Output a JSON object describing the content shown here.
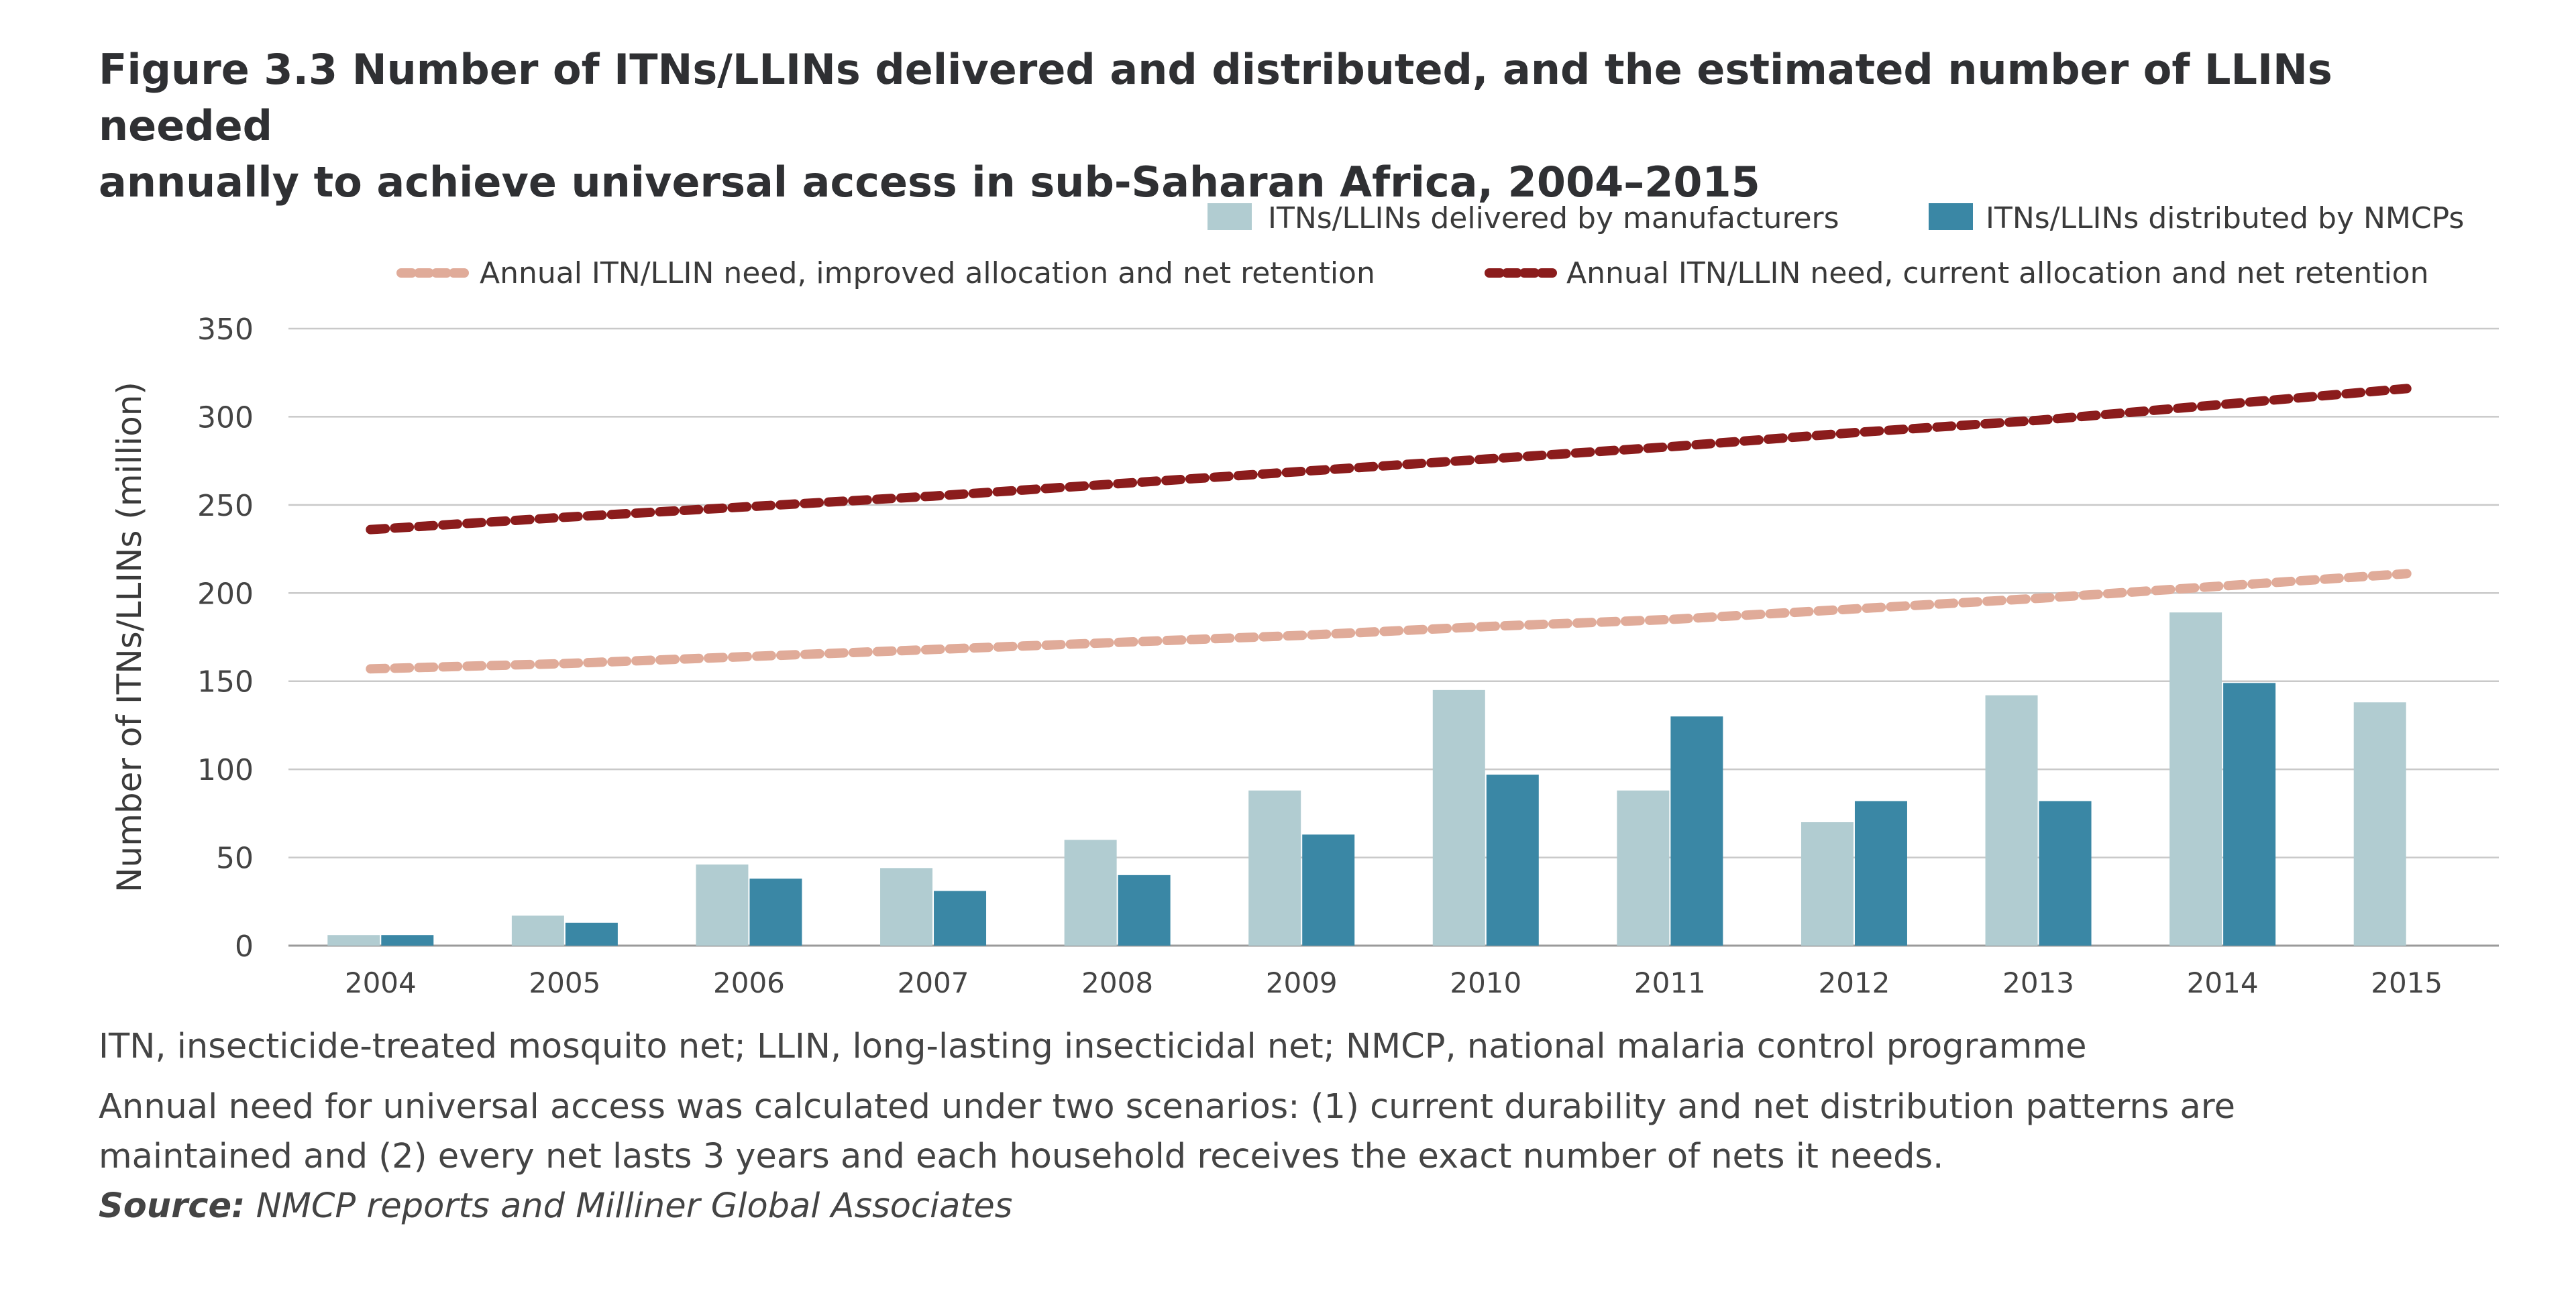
{
  "figure": {
    "title_line1": "Figure 3.3 Number of ITNs/LLINs delivered and distributed, and the estimated number of LLINs needed",
    "title_line2": "annually to achieve universal access in sub-Saharan Africa, 2004–2015"
  },
  "notes": {
    "abbreviations": "ITN, insecticide-treated mosquito net; LLIN, long-lasting insecticidal net; NMCP, national malaria control programme",
    "method_line1": "Annual need for universal access was calculated under two scenarios: (1) current durability and net distribution patterns are",
    "method_line2": "maintained and (2) every net lasts 3 years and each household receives the exact number of nets it needs.",
    "source_label": "Source:",
    "source_text": "NMCP reports and Milliner Global Associates"
  },
  "chart_data": {
    "type": "bar",
    "ylabel": "Number of ITNs/LLINs (million)",
    "ylim": [
      0,
      350
    ],
    "yticks": [
      0,
      50,
      100,
      150,
      200,
      250,
      300,
      350
    ],
    "grid": true,
    "legend_position": "top-right",
    "categories": [
      "2004",
      "2005",
      "2006",
      "2007",
      "2008",
      "2009",
      "2010",
      "2011",
      "2012",
      "2013",
      "2014",
      "2015"
    ],
    "series": [
      {
        "name": "ITNs/LLINs delivered by manufacturers",
        "kind": "bar",
        "color": "#b1ccd1",
        "values": [
          6,
          17,
          46,
          44,
          60,
          88,
          145,
          88,
          70,
          142,
          189,
          138
        ]
      },
      {
        "name": "ITNs/LLINs distributed by NMCPs",
        "kind": "bar",
        "color": "#3a87a5",
        "values": [
          6,
          13,
          38,
          31,
          40,
          63,
          97,
          130,
          82,
          82,
          149,
          null
        ]
      },
      {
        "name": "Annual ITN/LLIN need, improved allocation and net retention",
        "kind": "line",
        "color": "#e0ab99",
        "values": [
          157,
          160,
          164,
          168,
          172,
          176,
          181,
          185,
          191,
          197,
          204,
          211
        ]
      },
      {
        "name": "Annual ITN/LLIN need, current allocation and net retention",
        "kind": "line",
        "color": "#8b1c1c",
        "values": [
          236,
          243,
          249,
          255,
          262,
          269,
          276,
          283,
          291,
          298,
          307,
          316
        ]
      }
    ]
  }
}
